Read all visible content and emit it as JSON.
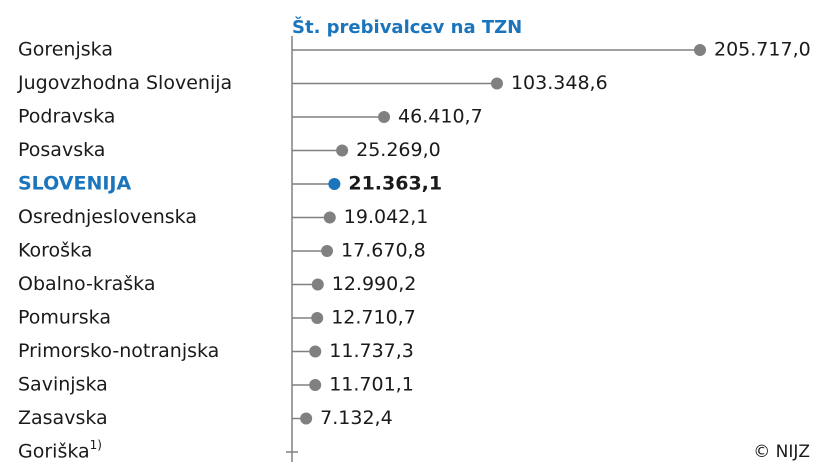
{
  "chart_data": {
    "type": "lollipop",
    "title": "Št. prebivalcev na TZN",
    "categories": [
      "Gorenjska",
      "Jugovzhodna Slovenija",
      "Podravska",
      "Posavska",
      "SLOVENIJA",
      "Osrednjeslovenska",
      "Koroška",
      "Obalno-kraška",
      "Pomurska",
      "Primorsko-notranjska",
      "Savinjska",
      "Zasavska",
      "Goriška"
    ],
    "category_footnotes": [
      null,
      null,
      null,
      null,
      null,
      null,
      null,
      null,
      null,
      null,
      null,
      null,
      "1)"
    ],
    "values": [
      205717.0,
      103348.6,
      46410.7,
      25269.0,
      21363.1,
      19042.1,
      17670.8,
      12990.2,
      12710.7,
      11737.3,
      11701.1,
      7132.4,
      null
    ],
    "value_labels": [
      "205.717,0",
      "103.348,6",
      "46.410,7",
      "25.269,0",
      "21.363,1",
      "19.042,1",
      "17.670,8",
      "12.990,2",
      "12.710,7",
      "11.737,3",
      "11.701,1",
      "7.132,4",
      null
    ],
    "color": "#808080",
    "highlight": "SLOVENIJA",
    "highlight_color": "#1a75bc",
    "xlim": [
      0,
      210000
    ],
    "credit": "© NIJZ"
  }
}
